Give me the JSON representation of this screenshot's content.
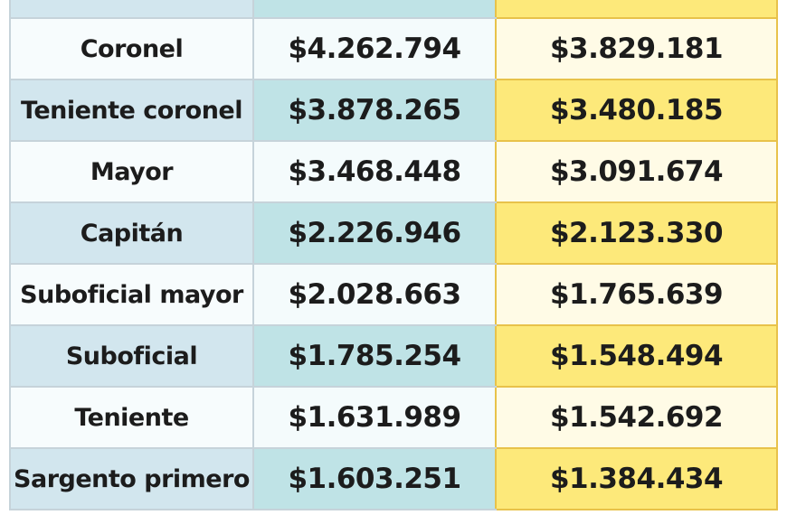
{
  "table": {
    "rows": [
      {
        "rank": "Coronel",
        "value_a": "$4.262.794",
        "value_b": "$3.829.181"
      },
      {
        "rank": "Teniente coronel",
        "value_a": "$3.878.265",
        "value_b": "$3.480.185"
      },
      {
        "rank": "Mayor",
        "value_a": "$3.468.448",
        "value_b": "$3.091.674"
      },
      {
        "rank": "Capitán",
        "value_a": "$2.226.946",
        "value_b": "$2.123.330"
      },
      {
        "rank": "Suboficial mayor",
        "value_a": "$2.028.663",
        "value_b": "$1.765.639"
      },
      {
        "rank": "Suboficial",
        "value_a": "$1.785.254",
        "value_b": "$1.548.494"
      },
      {
        "rank": "Teniente",
        "value_a": "$1.631.989",
        "value_b": "$1.542.692"
      },
      {
        "rank": "Sargento primero",
        "value_a": "$1.603.251",
        "value_b": "$1.384.434"
      }
    ]
  },
  "colors": {
    "light_rank_bg": "#f7fcfd",
    "dark_rank_bg": "#d2e6ee",
    "teal_light": "#f4fbfc",
    "teal_dark": "#bfe3e6",
    "yellow_light": "#fffbe6",
    "yellow_dark": "#fde97a",
    "yellow_border": "#e8c24a"
  }
}
